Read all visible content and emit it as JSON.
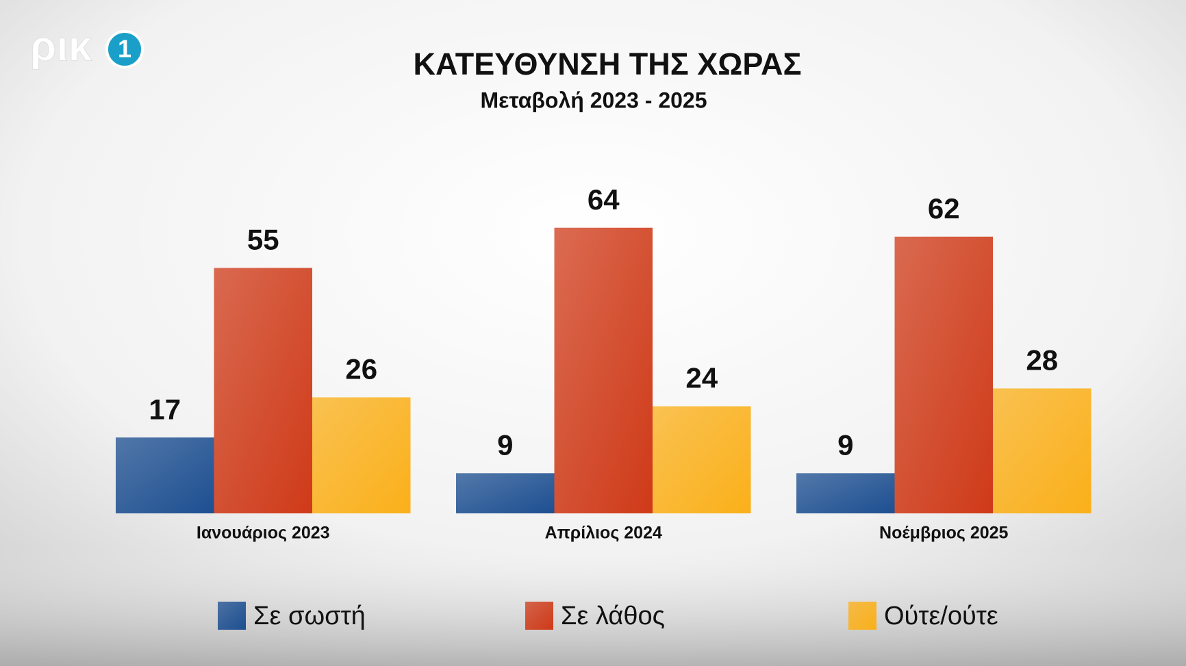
{
  "logo": {
    "text": "ρικ",
    "number": "1"
  },
  "chart_data": {
    "type": "bar",
    "title": "ΚΑΤΕΥΘΥΝΣΗ ΤΗΣ ΧΩΡΑΣ",
    "subtitle": "Μεταβολή 2023 - 2025",
    "categories": [
      "Ιανουάριος 2023",
      "Απρίλιος 2024",
      "Νοέμβριος 2025"
    ],
    "series": [
      {
        "name": "Σε σωστή",
        "color": "#1d4f91",
        "values": [
          17,
          9,
          9
        ]
      },
      {
        "name": "Σε λάθος",
        "color": "#cf3a18",
        "values": [
          55,
          64,
          62
        ]
      },
      {
        "name": "Ούτε/ούτε",
        "color": "#fbb01a",
        "values": [
          26,
          24,
          28
        ]
      }
    ],
    "legend": "bottom"
  }
}
